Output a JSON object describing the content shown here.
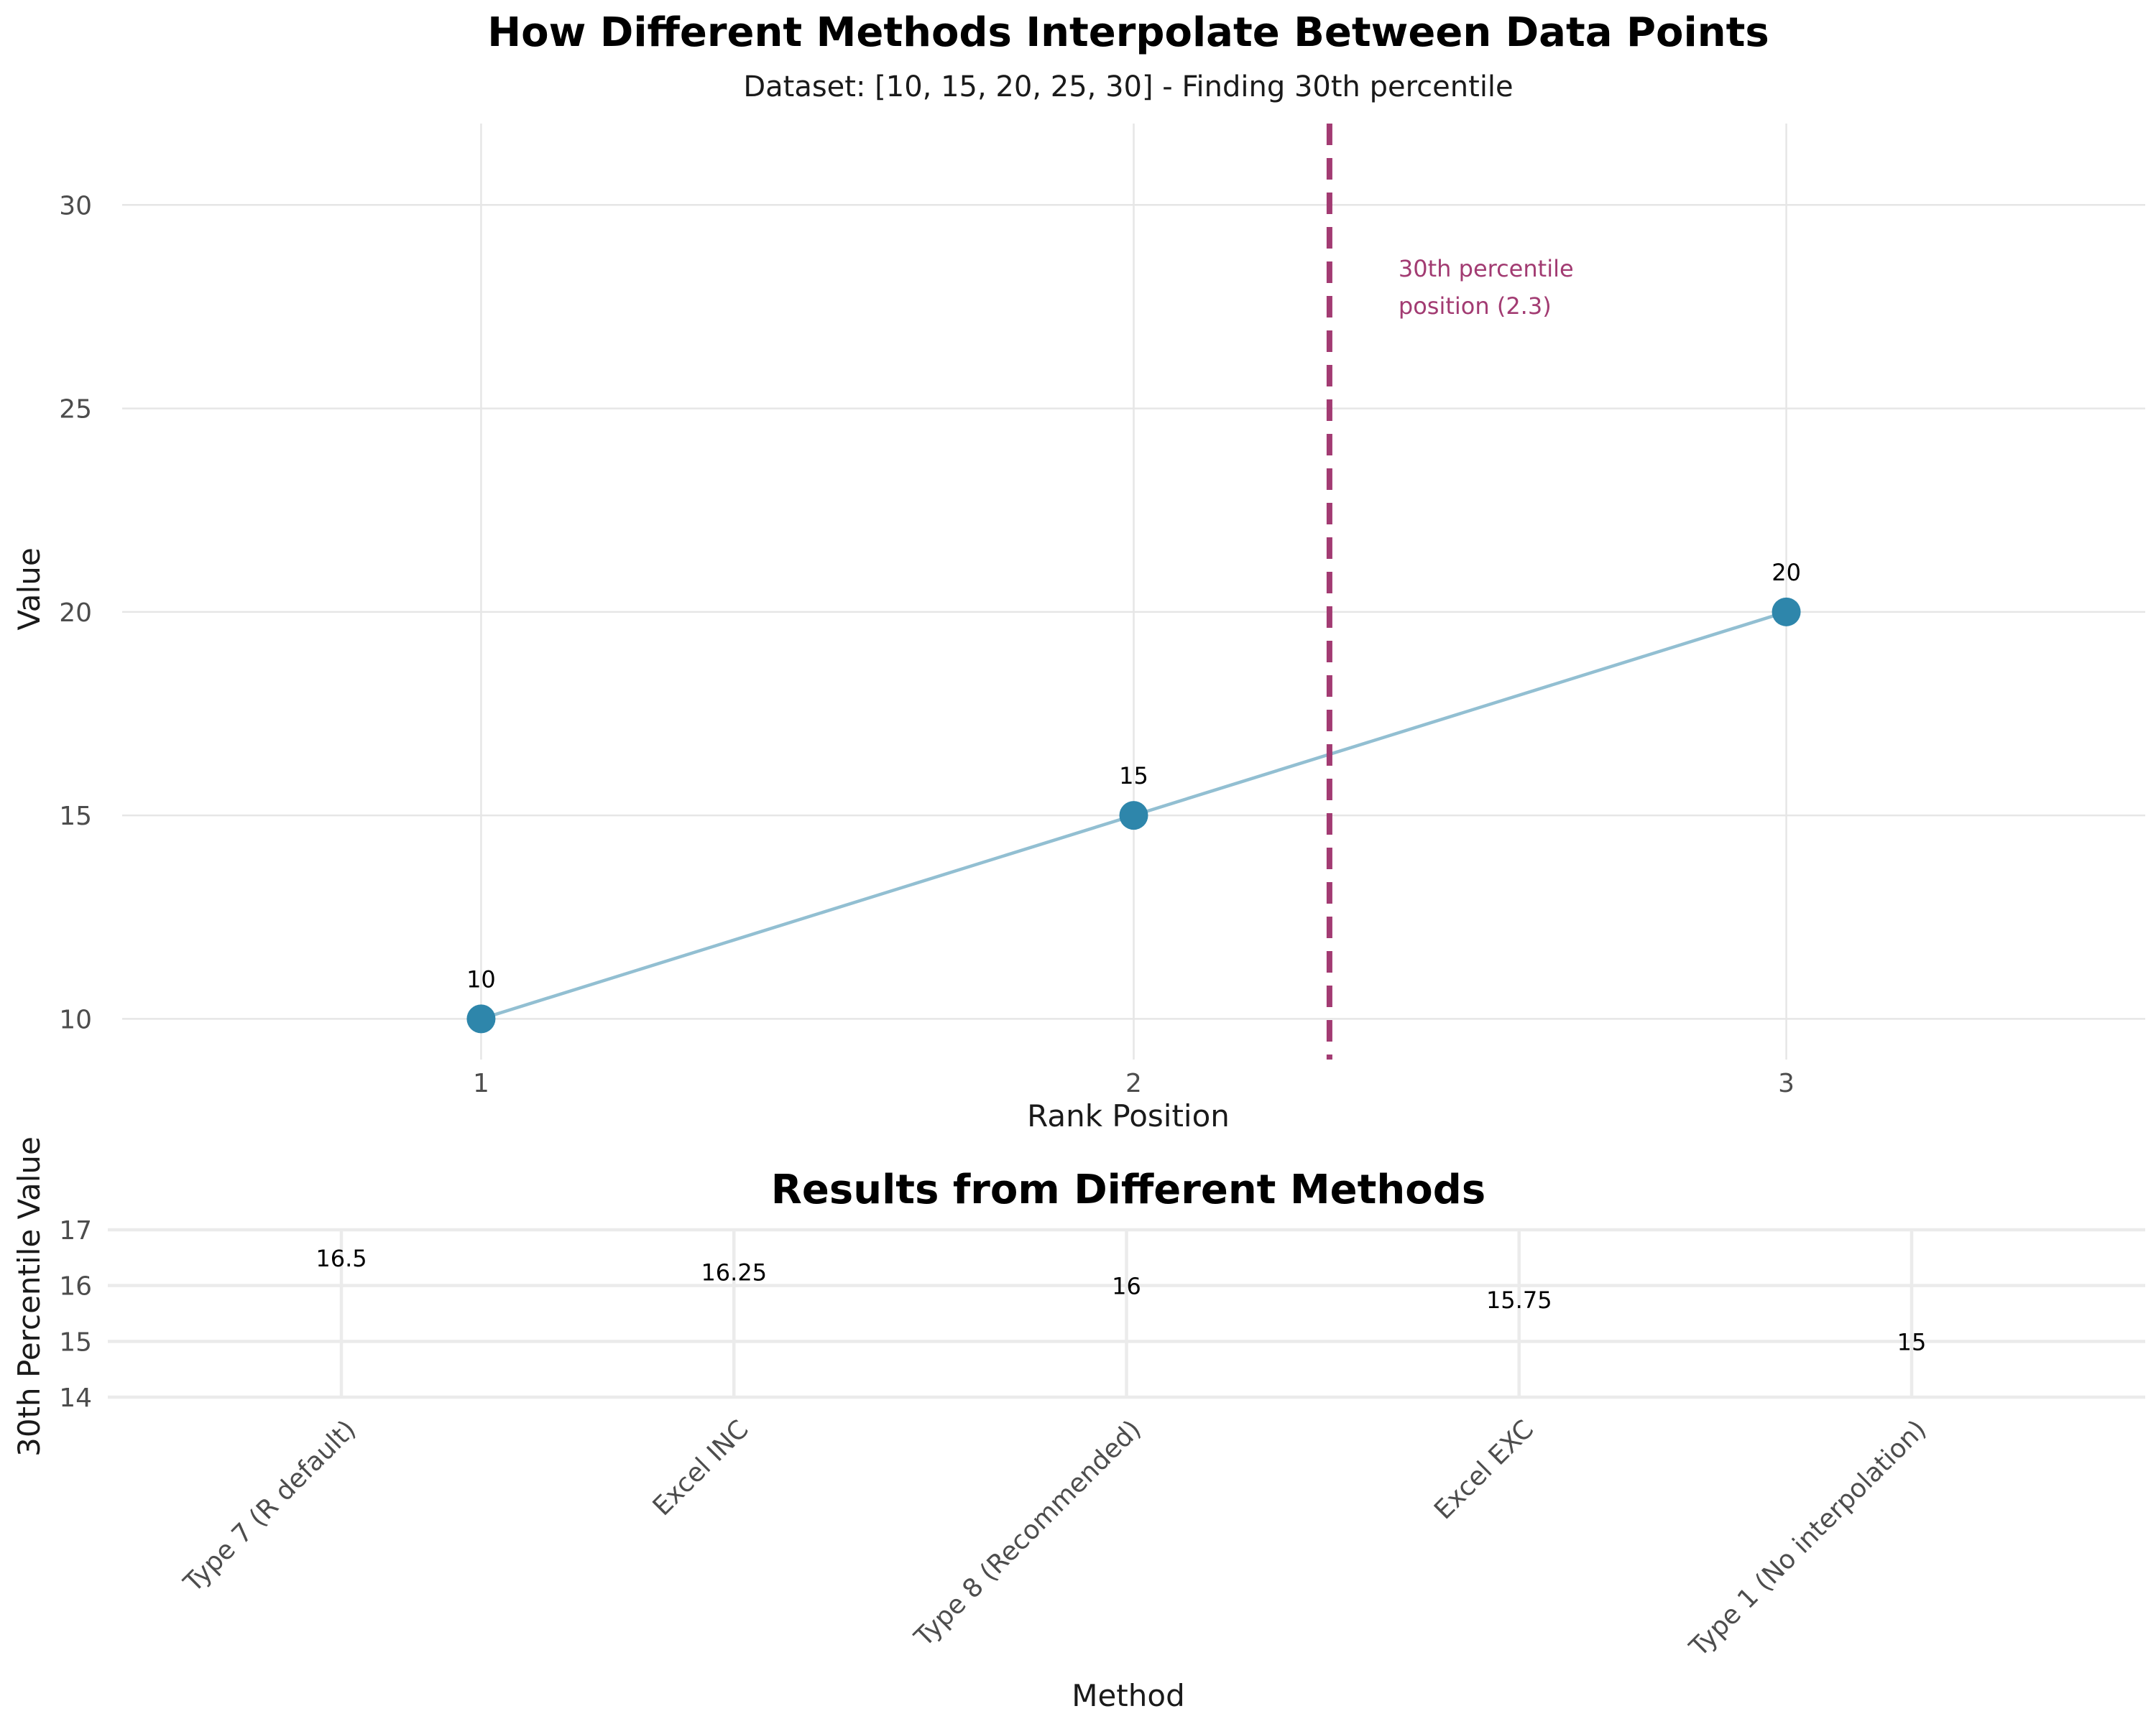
{
  "colors": {
    "point": "#2E86AB",
    "line": "#92BFD2",
    "marker_line": "#A23B72",
    "grid": "#E6E6E6"
  },
  "chart_data": [
    {
      "type": "line",
      "title": "How Different Methods Interpolate Between Data Points",
      "subtitle": "Dataset: [10, 15, 20, 25, 30] - Finding 30th percentile",
      "xlabel": "Rank Position",
      "ylabel": "Value",
      "x": [
        1,
        2,
        3
      ],
      "y": [
        10,
        15,
        20
      ],
      "point_labels": [
        "10",
        "15",
        "20"
      ],
      "x_ticks": [
        "1",
        "2",
        "3"
      ],
      "y_ticks": [
        "10",
        "15",
        "20",
        "25",
        "30"
      ],
      "xlim": [
        0.45,
        3.55
      ],
      "ylim": [
        9.0,
        32.0
      ],
      "vline": {
        "x": 2.3,
        "label_line1": "30th percentile",
        "label_line2": "position (2.3)",
        "style": "dashed"
      },
      "grid": true
    },
    {
      "type": "bar",
      "title": "Results from Different Methods",
      "xlabel": "Method",
      "ylabel": "30th Percentile Value",
      "categories": [
        "Type 7 (R default)",
        "Excel INC",
        "Type 8 (Recommended)",
        "Excel EXC",
        "Type 1 (No interpolation)"
      ],
      "values": [
        16.5,
        16.25,
        16,
        15.75,
        15
      ],
      "value_labels": [
        "16.5",
        "16.25",
        "16",
        "15.75",
        "15"
      ],
      "y_ticks": [
        "14",
        "15",
        "16",
        "17"
      ],
      "ylim": [
        14,
        17
      ],
      "grid": true
    }
  ]
}
